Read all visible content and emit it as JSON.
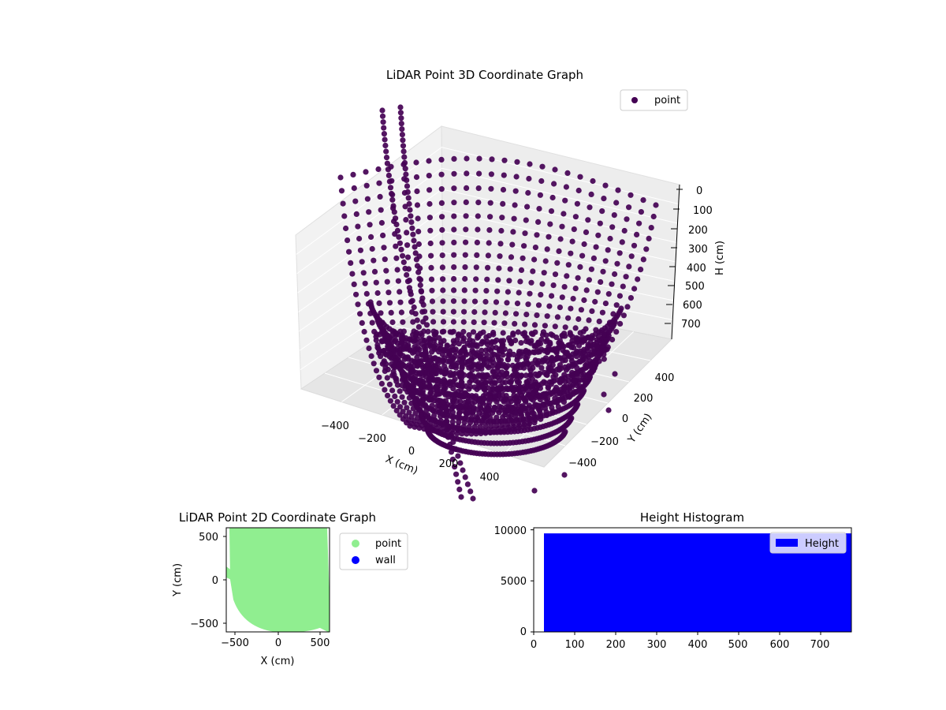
{
  "chart_data": [
    {
      "type": "scatter",
      "projection": "3d",
      "title": "LiDAR Point 3D Coordinate Graph",
      "xlabel": "X (cm)",
      "ylabel": "Y (cm)",
      "zlabel": "H (cm)",
      "xlim": [
        -580,
        580
      ],
      "ylim": [
        -580,
        580
      ],
      "zlim": [
        775,
        0
      ],
      "x_ticks": [
        "−400",
        "−200",
        "0",
        "200",
        "400"
      ],
      "y_ticks": [
        "−400",
        "−200",
        "0",
        "200",
        "400"
      ],
      "z_ticks": [
        "0",
        "100",
        "200",
        "300",
        "400",
        "500",
        "600",
        "700"
      ],
      "z_inverted": true,
      "series": [
        {
          "name": "point",
          "color": "#440154"
        }
      ],
      "legend": {
        "location": "upper-right"
      },
      "grid": true
    },
    {
      "type": "scatter",
      "title": "LiDAR Point 2D Coordinate Graph",
      "xlabel": "X (cm)",
      "ylabel": "Y (cm)",
      "xlim": [
        -580,
        580
      ],
      "ylim": [
        -600,
        600
      ],
      "x_ticks": [
        "−500",
        "0",
        "500"
      ],
      "y_ticks": [
        "−500",
        "0",
        "500"
      ],
      "series": [
        {
          "name": "point",
          "color": "#90ee90"
        },
        {
          "name": "wall",
          "color": "#0000ff"
        }
      ],
      "legend": {
        "location": "outside-right"
      }
    },
    {
      "type": "bar",
      "title": "Height Histogram",
      "xlim": [
        0,
        775
      ],
      "ylim": [
        0,
        10200
      ],
      "x_ticks": [
        "0",
        "100",
        "200",
        "300",
        "400",
        "500",
        "600",
        "700"
      ],
      "y_ticks": [
        "0",
        "5000",
        "10000"
      ],
      "bins": {
        "from": 25,
        "to": 775,
        "value": 9650
      },
      "series": [
        {
          "name": "Height",
          "color": "#0000ff"
        }
      ],
      "legend": {
        "location": "upper-right"
      }
    }
  ]
}
